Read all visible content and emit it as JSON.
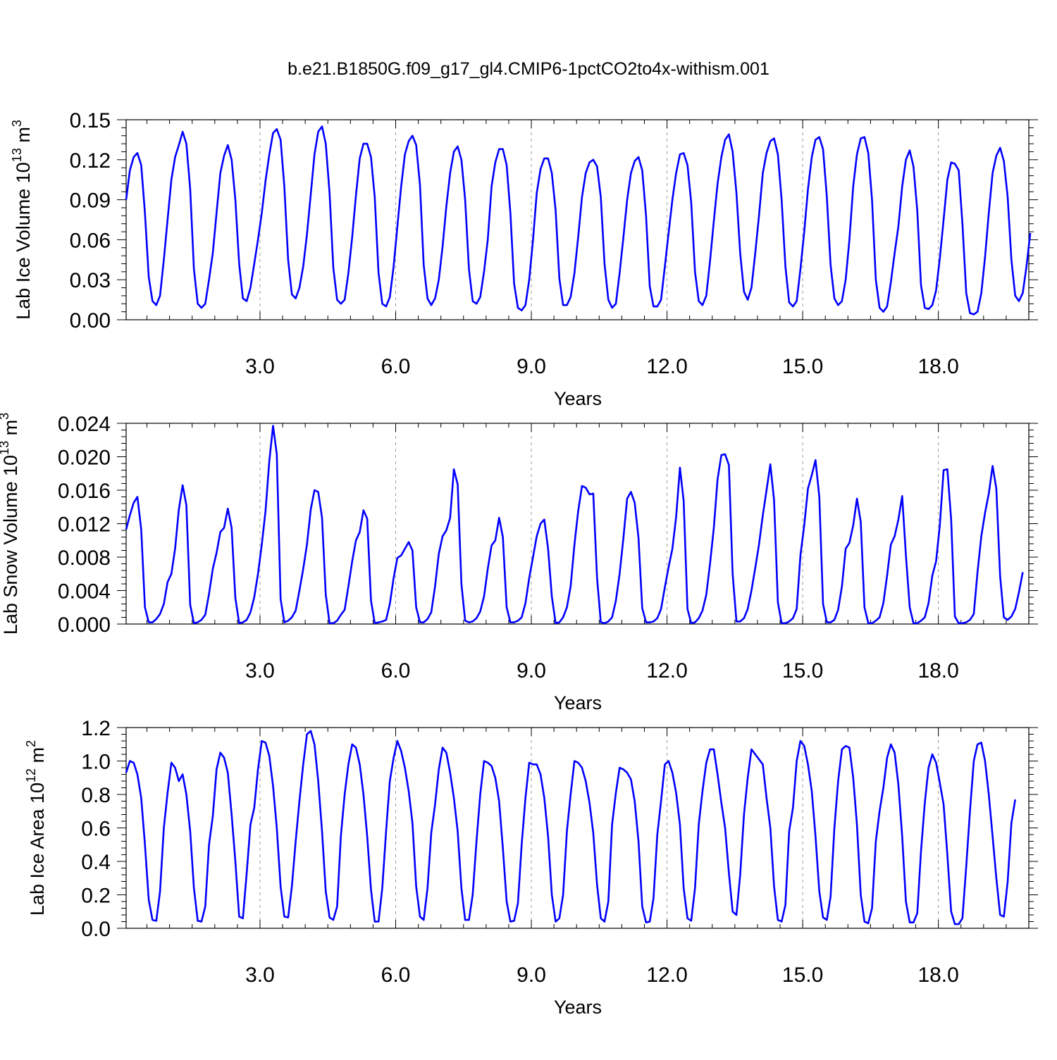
{
  "figure_title": "b.e21.B1850G.f09_g17_gl4.CMIP6-1pctCO2to4x-withism.001",
  "colors": {
    "line": "#0000ff",
    "axis": "#000000",
    "grid": "#999999"
  },
  "chart_data": [
    {
      "type": "line",
      "title": "",
      "xlabel": "Years",
      "ylabel": {
        "prefix": "Lab Ice Volume 10",
        "exponent": "13",
        "suffix": " m",
        "unit_exponent": "3"
      },
      "xlim": [
        0.04,
        20.0
      ],
      "ylim": [
        0.0,
        0.15
      ],
      "yticks": [
        "0.00",
        "0.03",
        "0.06",
        "0.09",
        "0.12",
        "0.15"
      ],
      "xticks": [
        "3.0",
        "6.0",
        "9.0",
        "12.0",
        "15.0",
        "18.0"
      ],
      "grid": "vertical dashed at major x ticks",
      "x_step": 0.0833,
      "values": [
        0.09,
        0.112,
        0.122,
        0.125,
        0.116,
        0.08,
        0.032,
        0.014,
        0.011,
        0.018,
        0.045,
        0.075,
        0.105,
        0.122,
        0.131,
        0.141,
        0.132,
        0.098,
        0.038,
        0.012,
        0.009,
        0.012,
        0.03,
        0.05,
        0.08,
        0.11,
        0.123,
        0.131,
        0.12,
        0.09,
        0.042,
        0.016,
        0.014,
        0.024,
        0.042,
        0.06,
        0.08,
        0.104,
        0.124,
        0.14,
        0.143,
        0.135,
        0.1,
        0.045,
        0.019,
        0.016,
        0.024,
        0.04,
        0.064,
        0.094,
        0.124,
        0.141,
        0.145,
        0.132,
        0.095,
        0.039,
        0.015,
        0.012,
        0.015,
        0.035,
        0.062,
        0.093,
        0.121,
        0.132,
        0.132,
        0.122,
        0.092,
        0.035,
        0.012,
        0.01,
        0.017,
        0.04,
        0.07,
        0.1,
        0.124,
        0.134,
        0.138,
        0.131,
        0.101,
        0.041,
        0.016,
        0.011,
        0.016,
        0.03,
        0.055,
        0.085,
        0.11,
        0.126,
        0.13,
        0.12,
        0.09,
        0.038,
        0.014,
        0.012,
        0.017,
        0.036,
        0.06,
        0.1,
        0.118,
        0.128,
        0.128,
        0.116,
        0.08,
        0.027,
        0.009,
        0.007,
        0.011,
        0.03,
        0.06,
        0.095,
        0.113,
        0.121,
        0.121,
        0.11,
        0.082,
        0.031,
        0.011,
        0.011,
        0.017,
        0.035,
        0.062,
        0.092,
        0.11,
        0.118,
        0.12,
        0.115,
        0.092,
        0.042,
        0.015,
        0.009,
        0.012,
        0.035,
        0.062,
        0.09,
        0.11,
        0.119,
        0.122,
        0.112,
        0.078,
        0.025,
        0.01,
        0.01,
        0.015,
        0.04,
        0.065,
        0.09,
        0.11,
        0.124,
        0.125,
        0.116,
        0.088,
        0.036,
        0.014,
        0.011,
        0.018,
        0.044,
        0.074,
        0.102,
        0.122,
        0.135,
        0.139,
        0.126,
        0.095,
        0.05,
        0.021,
        0.015,
        0.024,
        0.05,
        0.078,
        0.11,
        0.125,
        0.134,
        0.136,
        0.124,
        0.09,
        0.04,
        0.013,
        0.01,
        0.014,
        0.038,
        0.066,
        0.098,
        0.122,
        0.135,
        0.137,
        0.128,
        0.092,
        0.041,
        0.016,
        0.011,
        0.014,
        0.03,
        0.06,
        0.1,
        0.124,
        0.136,
        0.137,
        0.125,
        0.09,
        0.03,
        0.009,
        0.006,
        0.01,
        0.028,
        0.05,
        0.07,
        0.1,
        0.12,
        0.127,
        0.115,
        0.082,
        0.026,
        0.009,
        0.008,
        0.011,
        0.022,
        0.046,
        0.075,
        0.105,
        0.118,
        0.117,
        0.112,
        0.072,
        0.02,
        0.005,
        0.004,
        0.006,
        0.02,
        0.047,
        0.08,
        0.11,
        0.123,
        0.129,
        0.119,
        0.092,
        0.045,
        0.018,
        0.014,
        0.02,
        0.04,
        0.065
      ]
    },
    {
      "type": "line",
      "title": "",
      "xlabel": "Years",
      "ylabel": {
        "prefix": "Lab Snow Volume 10",
        "exponent": "13",
        "suffix": " m",
        "unit_exponent": "3"
      },
      "xlim": [
        0.04,
        20.0
      ],
      "ylim": [
        0.0,
        0.024
      ],
      "yticks": [
        "0.000",
        "0.004",
        "0.008",
        "0.012",
        "0.016",
        "0.020",
        "0.024"
      ],
      "xticks": [
        "3.0",
        "6.0",
        "9.0",
        "12.0",
        "15.0",
        "18.0"
      ],
      "grid": "vertical dashed at major x ticks",
      "x_step": 0.0833,
      "values": [
        0.0113,
        0.013,
        0.0145,
        0.0152,
        0.0113,
        0.002,
        0.0002,
        0.0002,
        0.0006,
        0.0012,
        0.0024,
        0.005,
        0.006,
        0.009,
        0.0137,
        0.0166,
        0.0142,
        0.0023,
        0.0001,
        0.0002,
        0.0005,
        0.0011,
        0.0036,
        0.0066,
        0.0085,
        0.011,
        0.0115,
        0.0138,
        0.0115,
        0.0031,
        0.0001,
        0.0002,
        0.0005,
        0.0014,
        0.0032,
        0.006,
        0.0095,
        0.0135,
        0.0195,
        0.0237,
        0.0203,
        0.003,
        0.0002,
        0.0004,
        0.0008,
        0.0016,
        0.004,
        0.0066,
        0.0095,
        0.0137,
        0.016,
        0.0158,
        0.0127,
        0.0035,
        0.0001,
        0.0001,
        0.0004,
        0.0011,
        0.0017,
        0.0045,
        0.0075,
        0.01,
        0.011,
        0.0136,
        0.0126,
        0.0028,
        0.0001,
        0.0002,
        0.0003,
        0.0005,
        0.0024,
        0.0055,
        0.0079,
        0.0082,
        0.009,
        0.0098,
        0.0088,
        0.002,
        0.0002,
        0.0002,
        0.0006,
        0.0014,
        0.0045,
        0.0084,
        0.0105,
        0.0112,
        0.0127,
        0.0185,
        0.0167,
        0.0048,
        0.0004,
        0.0002,
        0.0003,
        0.0007,
        0.0015,
        0.0033,
        0.0066,
        0.0094,
        0.01,
        0.0127,
        0.0104,
        0.002,
        0.0002,
        0.0002,
        0.0004,
        0.0008,
        0.0025,
        0.0055,
        0.008,
        0.0105,
        0.012,
        0.0125,
        0.009,
        0.0033,
        0.0001,
        0.0002,
        0.0008,
        0.002,
        0.0045,
        0.0095,
        0.0135,
        0.0165,
        0.0163,
        0.0155,
        0.0156,
        0.0055,
        0.0002,
        0.0001,
        0.0003,
        0.0008,
        0.0028,
        0.006,
        0.0103,
        0.015,
        0.0158,
        0.0145,
        0.0103,
        0.0019,
        0.0002,
        0.0002,
        0.0003,
        0.0007,
        0.0018,
        0.0044,
        0.0068,
        0.009,
        0.0128,
        0.0187,
        0.0147,
        0.0018,
        0.0001,
        0.0002,
        0.0007,
        0.0016,
        0.0035,
        0.0072,
        0.0115,
        0.0173,
        0.0202,
        0.0203,
        0.019,
        0.006,
        0.0003,
        0.0003,
        0.0007,
        0.0018,
        0.004,
        0.0067,
        0.0095,
        0.013,
        0.016,
        0.0191,
        0.0148,
        0.0026,
        0.0001,
        0.0001,
        0.0003,
        0.0007,
        0.0018,
        0.0082,
        0.0118,
        0.0162,
        0.0178,
        0.0196,
        0.0152,
        0.0024,
        0.0002,
        0.0002,
        0.0005,
        0.0017,
        0.0045,
        0.009,
        0.0097,
        0.0118,
        0.015,
        0.0122,
        0.002,
        0.0001,
        0.0001,
        0.0004,
        0.0008,
        0.0025,
        0.0058,
        0.0095,
        0.0105,
        0.0125,
        0.0153,
        0.0082,
        0.002,
        0.0001,
        0.0001,
        0.0004,
        0.0008,
        0.0025,
        0.0058,
        0.0075,
        0.0118,
        0.0184,
        0.0185,
        0.0125,
        0.0009,
        0.0001,
        0.0001,
        0.0002,
        0.0005,
        0.0012,
        0.0062,
        0.0105,
        0.0133,
        0.0156,
        0.0189,
        0.0162,
        0.0057,
        0.0008,
        0.0005,
        0.0009,
        0.0018,
        0.0038,
        0.0062
      ]
    },
    {
      "type": "line",
      "title": "",
      "xlabel": "Years",
      "ylabel": {
        "prefix": "Lab Ice Area 10",
        "exponent": "12",
        "suffix": " m",
        "unit_exponent": "2"
      },
      "xlim": [
        0.04,
        20.0
      ],
      "ylim": [
        0.0,
        1.2
      ],
      "yticks": [
        "0.0",
        "0.2",
        "0.4",
        "0.6",
        "0.8",
        "1.0",
        "1.2"
      ],
      "xticks": [
        "3.0",
        "6.0",
        "9.0",
        "12.0",
        "15.0",
        "18.0"
      ],
      "grid": "vertical dashed at major x ticks",
      "x_step": 0.0833,
      "values": [
        0.93,
        1.0,
        0.99,
        0.92,
        0.78,
        0.5,
        0.17,
        0.05,
        0.045,
        0.22,
        0.6,
        0.81,
        0.99,
        0.96,
        0.88,
        0.92,
        0.8,
        0.58,
        0.24,
        0.045,
        0.04,
        0.13,
        0.5,
        0.67,
        0.95,
        1.05,
        1.02,
        0.93,
        0.68,
        0.4,
        0.07,
        0.06,
        0.33,
        0.62,
        0.72,
        0.95,
        1.12,
        1.11,
        1.03,
        0.85,
        0.6,
        0.25,
        0.07,
        0.065,
        0.25,
        0.52,
        0.76,
        0.98,
        1.16,
        1.18,
        1.1,
        0.88,
        0.58,
        0.22,
        0.065,
        0.05,
        0.13,
        0.55,
        0.8,
        0.98,
        1.1,
        1.08,
        0.98,
        0.8,
        0.55,
        0.23,
        0.04,
        0.04,
        0.24,
        0.58,
        0.88,
        1.02,
        1.12,
        1.06,
        0.96,
        0.82,
        0.63,
        0.25,
        0.07,
        0.05,
        0.24,
        0.57,
        0.74,
        0.95,
        1.08,
        1.05,
        0.93,
        0.78,
        0.58,
        0.24,
        0.05,
        0.05,
        0.2,
        0.52,
        0.8,
        1.0,
        0.99,
        0.97,
        0.9,
        0.76,
        0.48,
        0.16,
        0.04,
        0.045,
        0.15,
        0.5,
        0.78,
        0.99,
        0.98,
        0.98,
        0.92,
        0.78,
        0.55,
        0.2,
        0.04,
        0.06,
        0.2,
        0.58,
        0.8,
        1.0,
        0.99,
        0.96,
        0.88,
        0.75,
        0.57,
        0.26,
        0.06,
        0.04,
        0.16,
        0.62,
        0.81,
        0.96,
        0.95,
        0.93,
        0.89,
        0.76,
        0.52,
        0.13,
        0.035,
        0.04,
        0.18,
        0.56,
        0.76,
        0.98,
        1.0,
        0.93,
        0.81,
        0.62,
        0.24,
        0.06,
        0.045,
        0.24,
        0.62,
        0.82,
        0.99,
        1.07,
        1.07,
        0.92,
        0.75,
        0.6,
        0.33,
        0.1,
        0.08,
        0.32,
        0.68,
        0.9,
        1.07,
        1.04,
        1.01,
        0.98,
        0.78,
        0.6,
        0.25,
        0.05,
        0.04,
        0.14,
        0.58,
        0.72,
        1.0,
        1.12,
        1.09,
        0.98,
        0.82,
        0.55,
        0.22,
        0.065,
        0.05,
        0.19,
        0.6,
        0.88,
        1.07,
        1.09,
        1.08,
        0.9,
        0.62,
        0.2,
        0.04,
        0.03,
        0.12,
        0.52,
        0.7,
        0.84,
        1.02,
        1.1,
        1.05,
        0.86,
        0.55,
        0.16,
        0.035,
        0.035,
        0.09,
        0.46,
        0.75,
        0.96,
        1.04,
        0.99,
        0.87,
        0.74,
        0.44,
        0.1,
        0.025,
        0.025,
        0.06,
        0.37,
        0.7,
        1.0,
        1.1,
        1.11,
        1.0,
        0.8,
        0.55,
        0.3,
        0.08,
        0.07,
        0.28,
        0.63,
        0.77
      ]
    }
  ]
}
